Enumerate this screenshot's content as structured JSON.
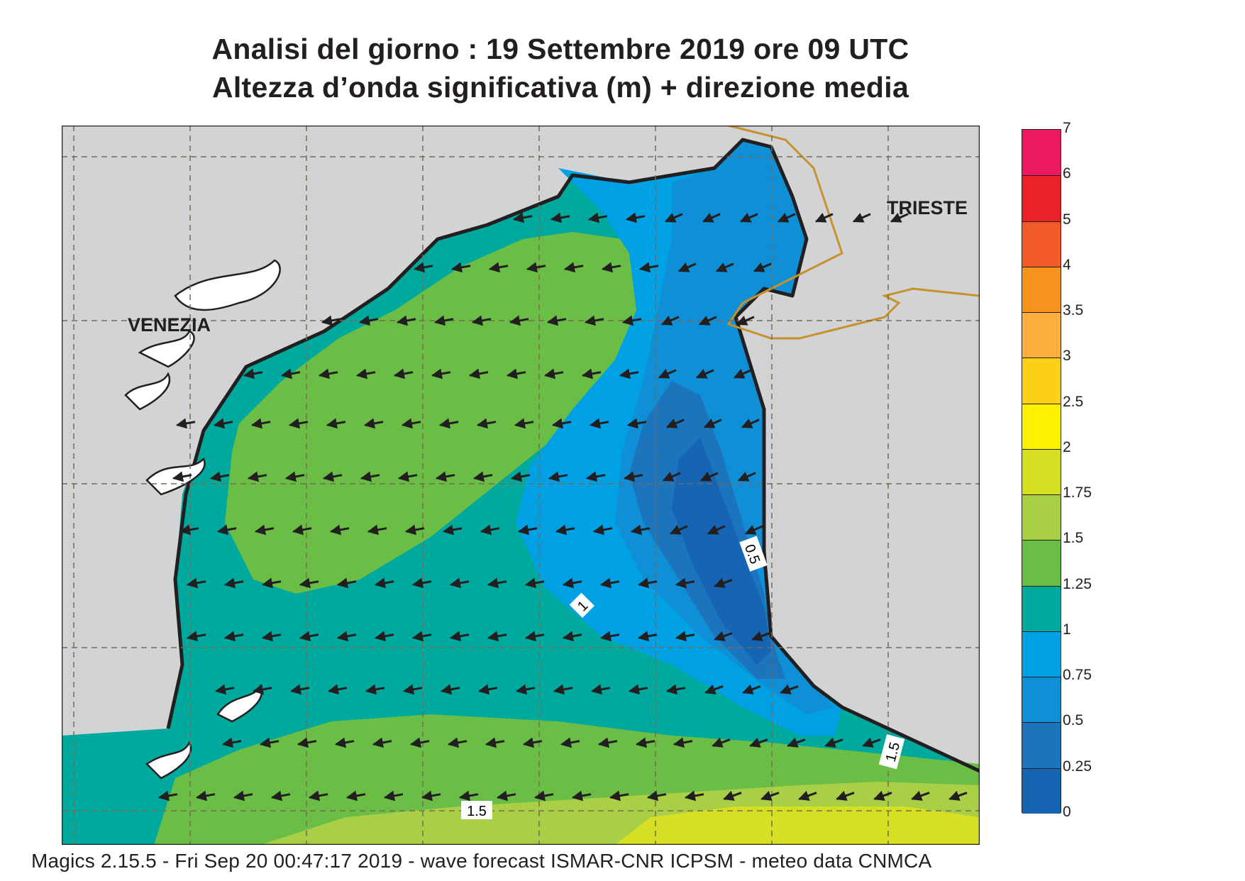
{
  "title": {
    "line1": "Analisi del giorno :  19 Settembre 2019   ore 09 UTC",
    "line2": "Altezza d’onda significativa (m) + direzione media"
  },
  "map": {
    "city_labels": [
      "VENEZIA",
      "TRIESTE"
    ],
    "contour_labels": [
      "0.5",
      "1",
      "1.5",
      "1.5"
    ],
    "wave_direction": "towards west-southwest"
  },
  "legend": {
    "items": [
      {
        "value": "7",
        "color": "#ec1a5f"
      },
      {
        "value": "6",
        "color": "#ec2027"
      },
      {
        "value": "5",
        "color": "#f15a29"
      },
      {
        "value": "4",
        "color": "#f7941d"
      },
      {
        "value": "3.5",
        "color": "#fbb040"
      },
      {
        "value": "3",
        "color": "#fcd115"
      },
      {
        "value": "2.5",
        "color": "#fff200"
      },
      {
        "value": "2",
        "color": "#d7df23"
      },
      {
        "value": "1.75",
        "color": "#a9cf46"
      },
      {
        "value": "1.5",
        "color": "#6abd45"
      },
      {
        "value": "1.25",
        "color": "#00a99d"
      },
      {
        "value": "1",
        "color": "#00a1e4"
      },
      {
        "value": "0.75",
        "color": "#0e8fd6"
      },
      {
        "value": "0.5",
        "color": "#1c75bc"
      },
      {
        "value": "0.25",
        "color": "#1565b3"
      },
      {
        "value": "0",
        "color": ""
      }
    ]
  },
  "footer": "Magics 2.15.5 - Fri Sep 20 00:47:17 2019 - wave forecast  ISMAR-CNR  ICPSM - meteo data   CNMCA"
}
